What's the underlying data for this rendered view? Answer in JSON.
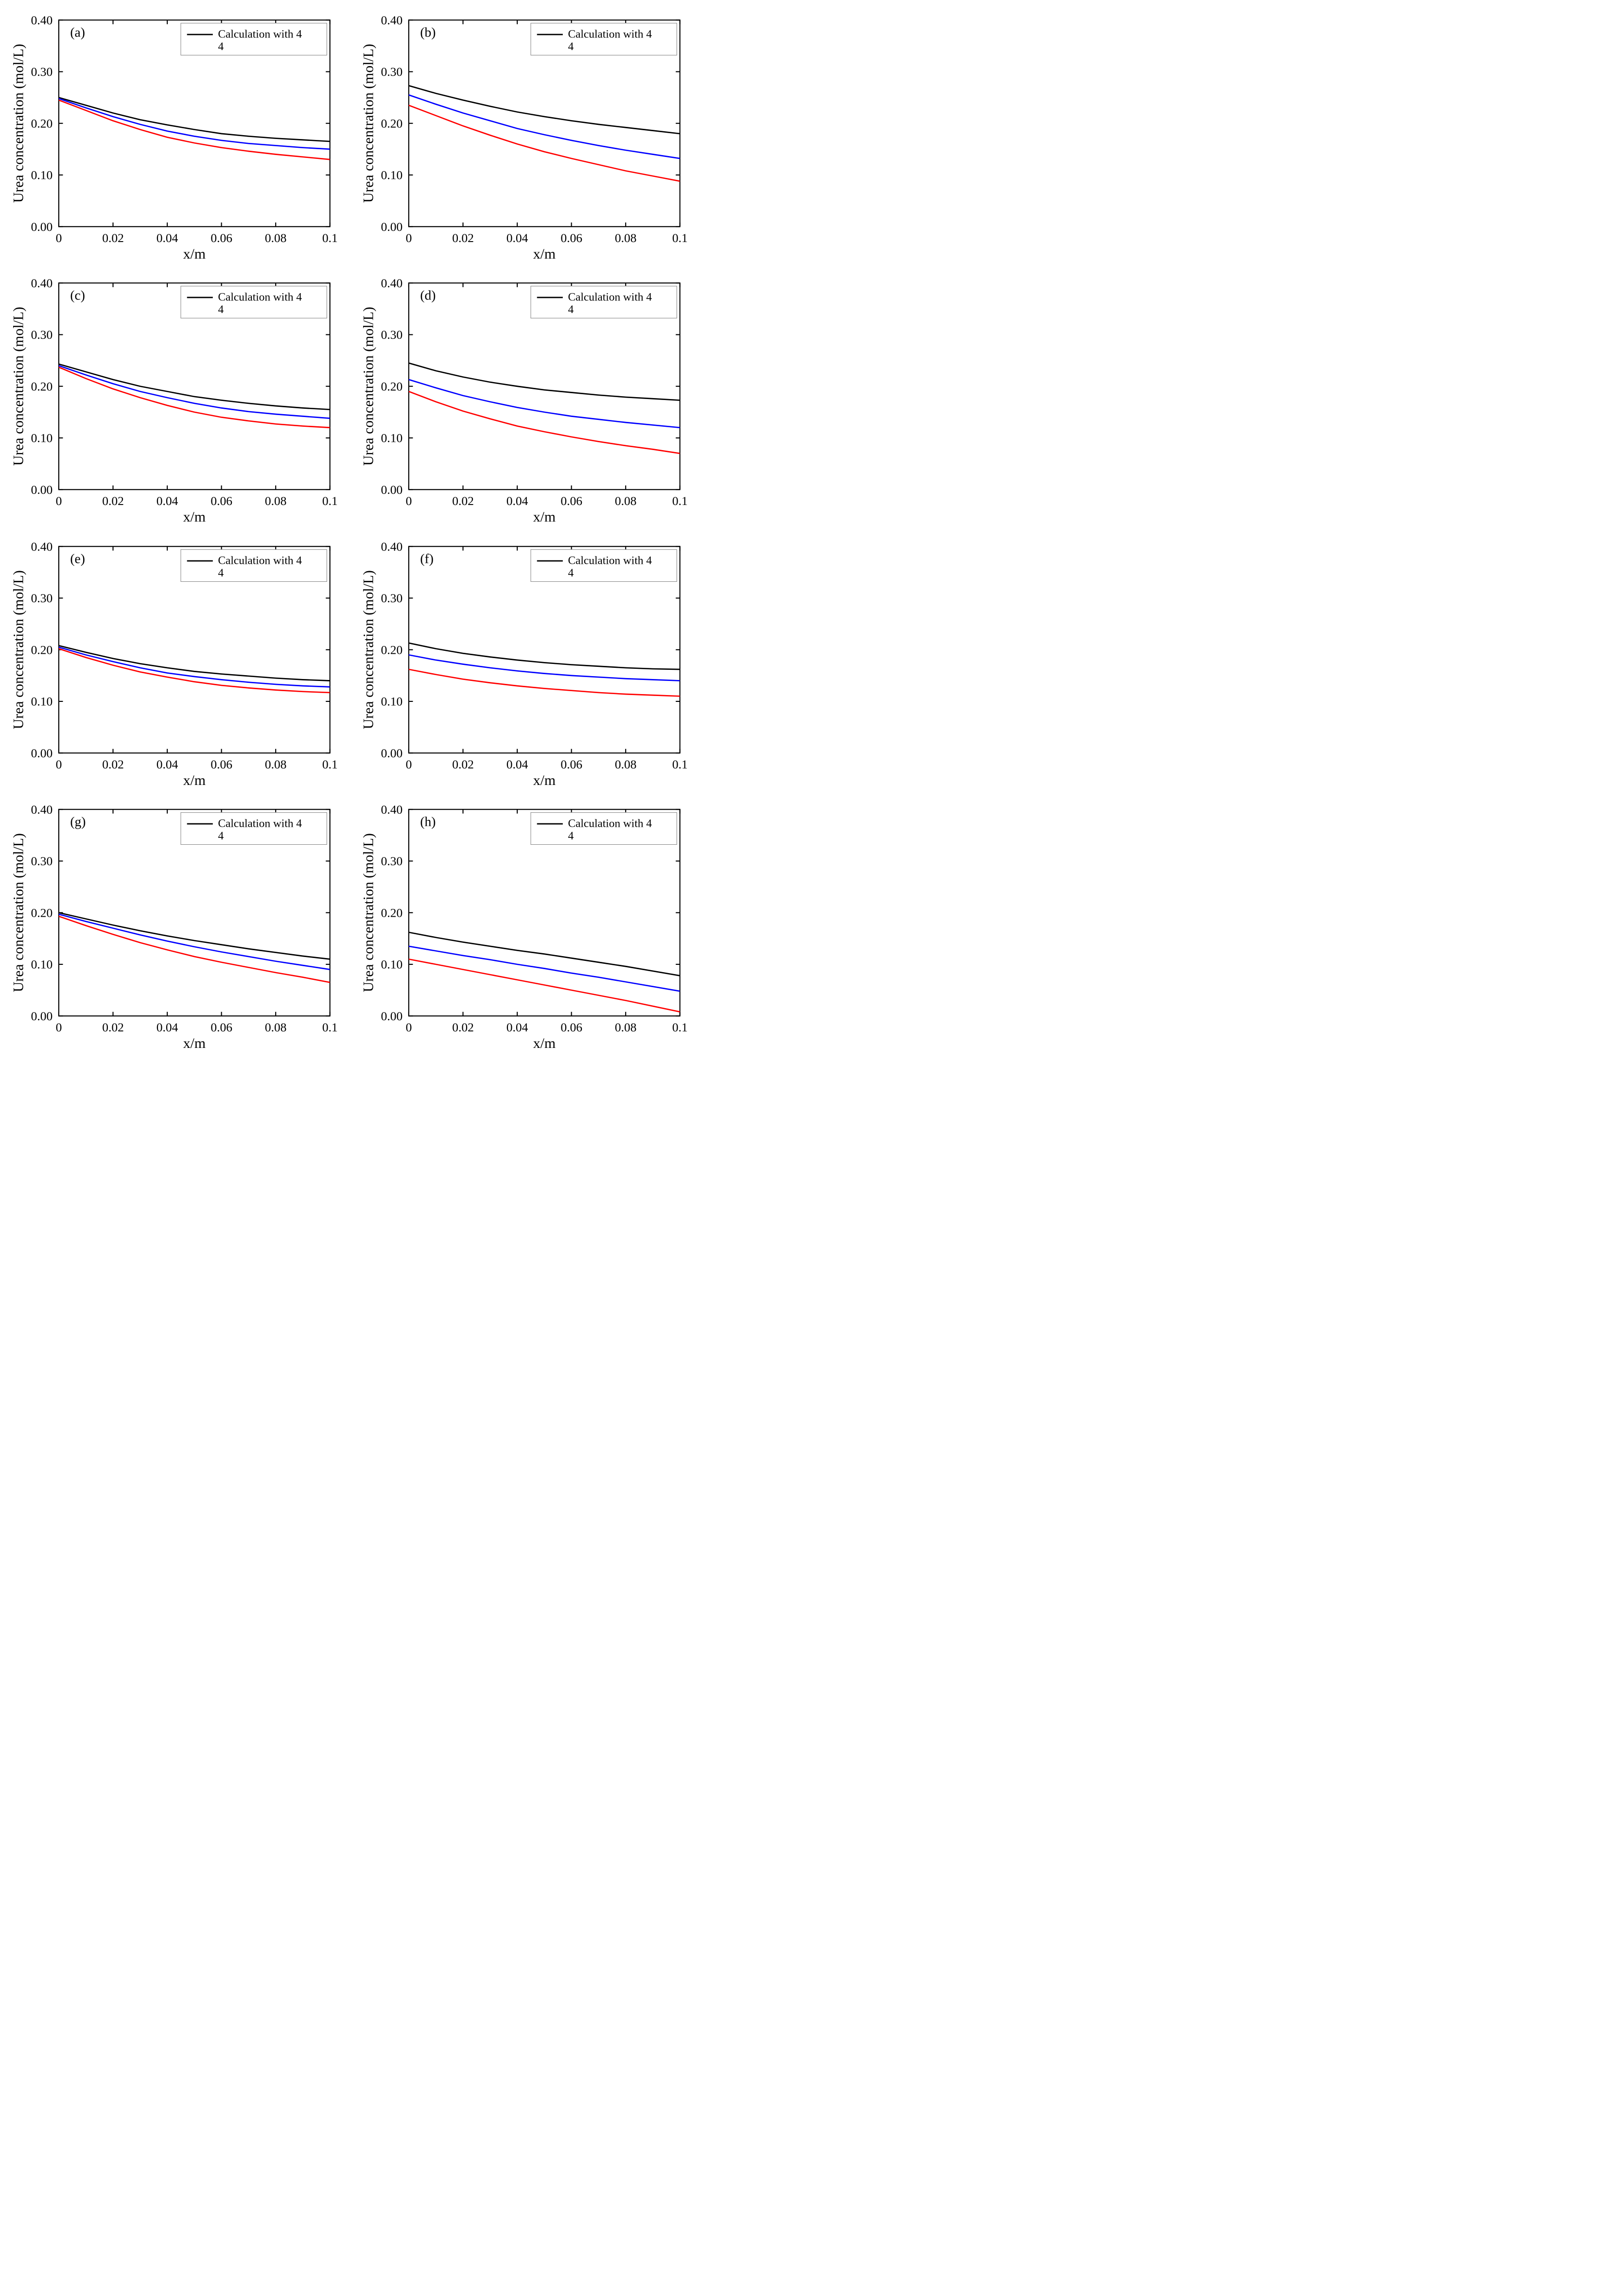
{
  "global": {
    "xlabel": "x/m",
    "ylabel": "Urea concentration (mol/L)",
    "legend_text_line1": "Calculation with 4",
    "legend_text_line2": "4",
    "xlim": [
      0,
      0.1
    ],
    "ylim": [
      0,
      0.4
    ],
    "xticks": [
      0,
      0.02,
      0.04,
      0.06,
      0.08,
      0.1
    ],
    "xtick_labels": [
      "0",
      "0.02",
      "0.04",
      "0.06",
      "0.08",
      "0.1"
    ],
    "yticks": [
      0.0,
      0.1,
      0.2,
      0.3,
      0.4
    ],
    "ytick_labels": [
      "0.00",
      "0.10",
      "0.20",
      "0.30",
      "0.40"
    ],
    "colors": {
      "black": "#000000",
      "blue": "#0000ff",
      "red": "#ff0000",
      "axis": "#000000",
      "legend_border": "#8a8a8a",
      "background": "#ffffff"
    },
    "line_width": 2.5,
    "axis_fontsize": 28,
    "tick_fontsize": 24,
    "panel_label_fontsize": 26,
    "legend_fontsize": 22
  },
  "panels": [
    {
      "id": "a",
      "label": "(a)",
      "series": [
        {
          "color": "black",
          "x": [
            0,
            0.01,
            0.02,
            0.03,
            0.04,
            0.05,
            0.06,
            0.07,
            0.08,
            0.09,
            0.1
          ],
          "y": [
            0.25,
            0.235,
            0.22,
            0.207,
            0.197,
            0.188,
            0.18,
            0.175,
            0.171,
            0.168,
            0.165
          ]
        },
        {
          "color": "blue",
          "x": [
            0,
            0.01,
            0.02,
            0.03,
            0.04,
            0.05,
            0.06,
            0.07,
            0.08,
            0.09,
            0.1
          ],
          "y": [
            0.248,
            0.23,
            0.213,
            0.198,
            0.185,
            0.175,
            0.167,
            0.161,
            0.157,
            0.153,
            0.15
          ]
        },
        {
          "color": "red",
          "x": [
            0,
            0.01,
            0.02,
            0.03,
            0.04,
            0.05,
            0.06,
            0.07,
            0.08,
            0.09,
            0.1
          ],
          "y": [
            0.245,
            0.225,
            0.205,
            0.188,
            0.173,
            0.162,
            0.153,
            0.146,
            0.14,
            0.135,
            0.13
          ]
        }
      ]
    },
    {
      "id": "b",
      "label": "(b)",
      "series": [
        {
          "color": "black",
          "x": [
            0,
            0.01,
            0.02,
            0.03,
            0.04,
            0.05,
            0.06,
            0.07,
            0.08,
            0.09,
            0.1
          ],
          "y": [
            0.273,
            0.258,
            0.245,
            0.233,
            0.222,
            0.213,
            0.205,
            0.198,
            0.192,
            0.186,
            0.18
          ]
        },
        {
          "color": "blue",
          "x": [
            0,
            0.01,
            0.02,
            0.03,
            0.04,
            0.05,
            0.06,
            0.07,
            0.08,
            0.09,
            0.1
          ],
          "y": [
            0.255,
            0.237,
            0.22,
            0.205,
            0.19,
            0.178,
            0.167,
            0.157,
            0.148,
            0.14,
            0.132
          ]
        },
        {
          "color": "red",
          "x": [
            0,
            0.01,
            0.02,
            0.03,
            0.04,
            0.05,
            0.06,
            0.07,
            0.08,
            0.09,
            0.1
          ],
          "y": [
            0.235,
            0.215,
            0.195,
            0.177,
            0.16,
            0.145,
            0.132,
            0.12,
            0.108,
            0.098,
            0.088
          ]
        }
      ]
    },
    {
      "id": "c",
      "label": "(c)",
      "series": [
        {
          "color": "black",
          "x": [
            0,
            0.01,
            0.02,
            0.03,
            0.04,
            0.05,
            0.06,
            0.07,
            0.08,
            0.09,
            0.1
          ],
          "y": [
            0.243,
            0.228,
            0.213,
            0.2,
            0.19,
            0.18,
            0.173,
            0.167,
            0.162,
            0.158,
            0.155
          ]
        },
        {
          "color": "blue",
          "x": [
            0,
            0.01,
            0.02,
            0.03,
            0.04,
            0.05,
            0.06,
            0.07,
            0.08,
            0.09,
            0.1
          ],
          "y": [
            0.24,
            0.222,
            0.205,
            0.19,
            0.178,
            0.167,
            0.158,
            0.151,
            0.146,
            0.142,
            0.138
          ]
        },
        {
          "color": "red",
          "x": [
            0,
            0.01,
            0.02,
            0.03,
            0.04,
            0.05,
            0.06,
            0.07,
            0.08,
            0.09,
            0.1
          ],
          "y": [
            0.237,
            0.215,
            0.195,
            0.178,
            0.163,
            0.15,
            0.14,
            0.133,
            0.127,
            0.123,
            0.12
          ]
        }
      ]
    },
    {
      "id": "d",
      "label": "(d)",
      "series": [
        {
          "color": "black",
          "x": [
            0,
            0.01,
            0.02,
            0.03,
            0.04,
            0.05,
            0.06,
            0.07,
            0.08,
            0.09,
            0.1
          ],
          "y": [
            0.245,
            0.23,
            0.218,
            0.208,
            0.2,
            0.193,
            0.188,
            0.183,
            0.179,
            0.176,
            0.173
          ]
        },
        {
          "color": "blue",
          "x": [
            0,
            0.01,
            0.02,
            0.03,
            0.04,
            0.05,
            0.06,
            0.07,
            0.08,
            0.09,
            0.1
          ],
          "y": [
            0.213,
            0.197,
            0.182,
            0.17,
            0.159,
            0.15,
            0.142,
            0.136,
            0.13,
            0.125,
            0.12
          ]
        },
        {
          "color": "red",
          "x": [
            0,
            0.01,
            0.02,
            0.03,
            0.04,
            0.05,
            0.06,
            0.07,
            0.08,
            0.09,
            0.1
          ],
          "y": [
            0.19,
            0.17,
            0.152,
            0.137,
            0.123,
            0.112,
            0.102,
            0.093,
            0.085,
            0.078,
            0.07
          ]
        }
      ]
    },
    {
      "id": "e",
      "label": "(e)",
      "series": [
        {
          "color": "black",
          "x": [
            0,
            0.01,
            0.02,
            0.03,
            0.04,
            0.05,
            0.06,
            0.07,
            0.08,
            0.09,
            0.1
          ],
          "y": [
            0.208,
            0.195,
            0.183,
            0.173,
            0.165,
            0.158,
            0.153,
            0.149,
            0.145,
            0.142,
            0.14
          ]
        },
        {
          "color": "blue",
          "x": [
            0,
            0.01,
            0.02,
            0.03,
            0.04,
            0.05,
            0.06,
            0.07,
            0.08,
            0.09,
            0.1
          ],
          "y": [
            0.205,
            0.19,
            0.177,
            0.165,
            0.155,
            0.148,
            0.142,
            0.137,
            0.133,
            0.13,
            0.128
          ]
        },
        {
          "color": "red",
          "x": [
            0,
            0.01,
            0.02,
            0.03,
            0.04,
            0.05,
            0.06,
            0.07,
            0.08,
            0.09,
            0.1
          ],
          "y": [
            0.202,
            0.185,
            0.17,
            0.157,
            0.147,
            0.138,
            0.131,
            0.126,
            0.122,
            0.119,
            0.117
          ]
        }
      ]
    },
    {
      "id": "f",
      "label": "(f)",
      "series": [
        {
          "color": "black",
          "x": [
            0,
            0.01,
            0.02,
            0.03,
            0.04,
            0.05,
            0.06,
            0.07,
            0.08,
            0.09,
            0.1
          ],
          "y": [
            0.213,
            0.202,
            0.193,
            0.186,
            0.18,
            0.175,
            0.171,
            0.168,
            0.165,
            0.163,
            0.162
          ]
        },
        {
          "color": "blue",
          "x": [
            0,
            0.01,
            0.02,
            0.03,
            0.04,
            0.05,
            0.06,
            0.07,
            0.08,
            0.09,
            0.1
          ],
          "y": [
            0.19,
            0.18,
            0.172,
            0.165,
            0.159,
            0.154,
            0.15,
            0.147,
            0.144,
            0.142,
            0.14
          ]
        },
        {
          "color": "red",
          "x": [
            0,
            0.01,
            0.02,
            0.03,
            0.04,
            0.05,
            0.06,
            0.07,
            0.08,
            0.09,
            0.1
          ],
          "y": [
            0.162,
            0.152,
            0.143,
            0.136,
            0.13,
            0.125,
            0.121,
            0.117,
            0.114,
            0.112,
            0.11
          ]
        }
      ]
    },
    {
      "id": "g",
      "label": "(g)",
      "series": [
        {
          "color": "black",
          "x": [
            0,
            0.01,
            0.02,
            0.03,
            0.04,
            0.05,
            0.06,
            0.07,
            0.08,
            0.09,
            0.1
          ],
          "y": [
            0.2,
            0.188,
            0.176,
            0.165,
            0.155,
            0.146,
            0.138,
            0.13,
            0.123,
            0.116,
            0.11
          ]
        },
        {
          "color": "blue",
          "x": [
            0,
            0.01,
            0.02,
            0.03,
            0.04,
            0.05,
            0.06,
            0.07,
            0.08,
            0.09,
            0.1
          ],
          "y": [
            0.197,
            0.183,
            0.17,
            0.157,
            0.145,
            0.134,
            0.124,
            0.115,
            0.106,
            0.098,
            0.09
          ]
        },
        {
          "color": "red",
          "x": [
            0,
            0.01,
            0.02,
            0.03,
            0.04,
            0.05,
            0.06,
            0.07,
            0.08,
            0.09,
            0.1
          ],
          "y": [
            0.193,
            0.175,
            0.158,
            0.142,
            0.128,
            0.115,
            0.104,
            0.094,
            0.084,
            0.075,
            0.065
          ]
        }
      ]
    },
    {
      "id": "h",
      "label": "(h)",
      "series": [
        {
          "color": "black",
          "x": [
            0,
            0.01,
            0.02,
            0.03,
            0.04,
            0.05,
            0.06,
            0.07,
            0.08,
            0.09,
            0.1
          ],
          "y": [
            0.162,
            0.152,
            0.143,
            0.135,
            0.127,
            0.12,
            0.112,
            0.104,
            0.096,
            0.087,
            0.078
          ]
        },
        {
          "color": "blue",
          "x": [
            0,
            0.01,
            0.02,
            0.03,
            0.04,
            0.05,
            0.06,
            0.07,
            0.08,
            0.09,
            0.1
          ],
          "y": [
            0.135,
            0.126,
            0.117,
            0.109,
            0.1,
            0.092,
            0.083,
            0.075,
            0.066,
            0.057,
            0.048
          ]
        },
        {
          "color": "red",
          "x": [
            0,
            0.01,
            0.02,
            0.03,
            0.04,
            0.05,
            0.06,
            0.07,
            0.08,
            0.09,
            0.1
          ],
          "y": [
            0.11,
            0.1,
            0.09,
            0.08,
            0.07,
            0.06,
            0.05,
            0.04,
            0.03,
            0.019,
            0.008
          ]
        }
      ]
    }
  ]
}
